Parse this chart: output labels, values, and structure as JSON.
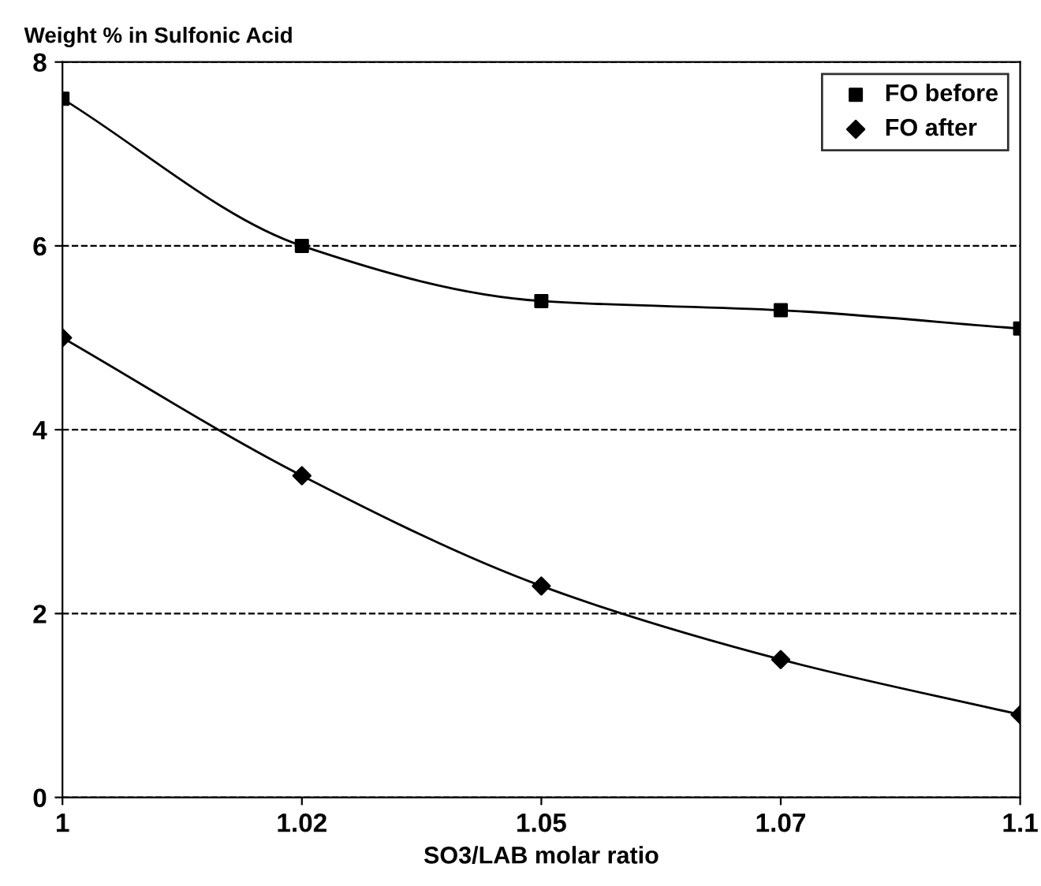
{
  "chart_data": {
    "type": "line",
    "ylabel": "Weight % in Sulfonic Acid",
    "xlabel": "SO3/LAB molar ratio",
    "categories": [
      "1",
      "1.02",
      "1.05",
      "1.07",
      "1.1"
    ],
    "series": [
      {
        "name": "FO before",
        "color": "#000000",
        "marker": "square",
        "values": [
          7.6,
          6.0,
          5.4,
          5.3,
          5.1
        ]
      },
      {
        "name": "FO after",
        "color": "#000000",
        "marker": "diamond",
        "values": [
          5.0,
          3.5,
          2.3,
          1.5,
          0.9
        ]
      }
    ],
    "ylim": [
      0,
      8
    ],
    "yticks": [
      0,
      2,
      4,
      6,
      8
    ],
    "grid": "y",
    "legend": "top right"
  }
}
